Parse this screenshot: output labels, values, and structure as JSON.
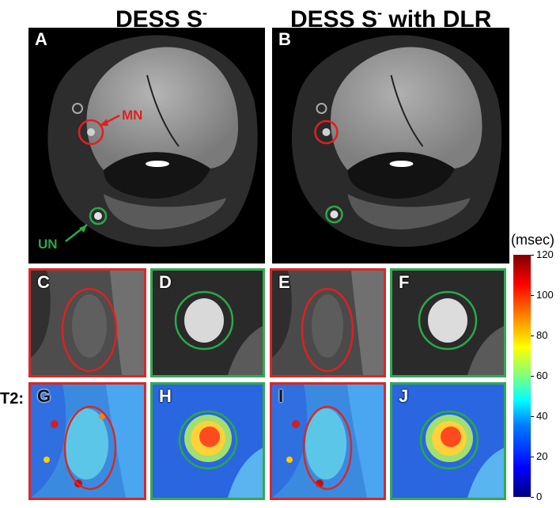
{
  "titles": {
    "left_main": "DESS S",
    "left_sup": "-",
    "right_main": "DESS S",
    "right_sup": "-",
    "right_suffix": " with DLR"
  },
  "panels": {
    "A": "A",
    "B": "B",
    "C": "C",
    "D": "D",
    "E": "E",
    "F": "F",
    "G": "G",
    "H": "H",
    "I": "I",
    "J": "J"
  },
  "annotations": {
    "median_nerve": "MN",
    "ulnar_nerve": "UN",
    "row_label": "T2:"
  },
  "colorbar": {
    "unit": "(msec)",
    "ticks": [
      "120",
      "100",
      "80",
      "60",
      "40",
      "20",
      "0"
    ]
  },
  "colors": {
    "median_nerve": "#e02020",
    "ulnar_nerve": "#2aa84a"
  }
}
